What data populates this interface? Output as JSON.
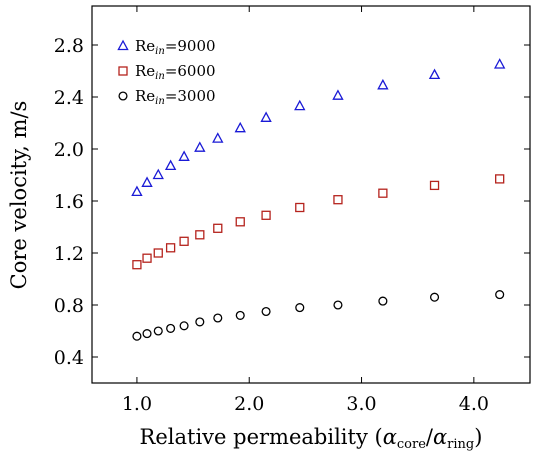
{
  "chart_data": {
    "type": "scatter",
    "xlabel_parts": [
      "Relative permeability (",
      "α",
      "core",
      "/",
      "α",
      "ring",
      ")"
    ],
    "ylabel": "Core velocity, m/s",
    "xlim": [
      0.6,
      4.5
    ],
    "ylim": [
      0.2,
      3.1
    ],
    "xticks": [
      1.0,
      2.0,
      3.0,
      4.0
    ],
    "xtick_labels": [
      "1.0",
      "2.0",
      "3.0",
      "4.0"
    ],
    "yticks": [
      0.4,
      0.8,
      1.2,
      1.6,
      2.0,
      2.4,
      2.8
    ],
    "ytick_labels": [
      "0.4",
      "0.8",
      "1.2",
      "1.6",
      "2.0",
      "2.4",
      "2.8"
    ],
    "grid": false,
    "legend_position": "top-left",
    "x": [
      1.0,
      1.09,
      1.19,
      1.3,
      1.42,
      1.56,
      1.72,
      1.92,
      2.15,
      2.45,
      2.79,
      3.19,
      3.65,
      4.23
    ],
    "series": [
      {
        "legend_prefix": "Re",
        "legend_sub": "in",
        "legend_value": "=9000",
        "marker": "triangle",
        "color": "#1a1ad6",
        "values": [
          1.67,
          1.74,
          1.8,
          1.87,
          1.94,
          2.01,
          2.08,
          2.16,
          2.24,
          2.33,
          2.41,
          2.49,
          2.57,
          2.65
        ]
      },
      {
        "legend_prefix": "Re",
        "legend_sub": "in",
        "legend_value": "=6000",
        "marker": "square",
        "color": "#b5231d",
        "values": [
          1.11,
          1.16,
          1.2,
          1.24,
          1.29,
          1.34,
          1.39,
          1.44,
          1.49,
          1.55,
          1.61,
          1.66,
          1.72,
          1.77
        ]
      },
      {
        "legend_prefix": "Re",
        "legend_sub": "in",
        "legend_value": "=3000",
        "marker": "circle",
        "color": "#000000",
        "values": [
          0.56,
          0.58,
          0.6,
          0.62,
          0.64,
          0.67,
          0.7,
          0.72,
          0.75,
          0.78,
          0.8,
          0.83,
          0.86,
          0.88
        ]
      }
    ]
  }
}
